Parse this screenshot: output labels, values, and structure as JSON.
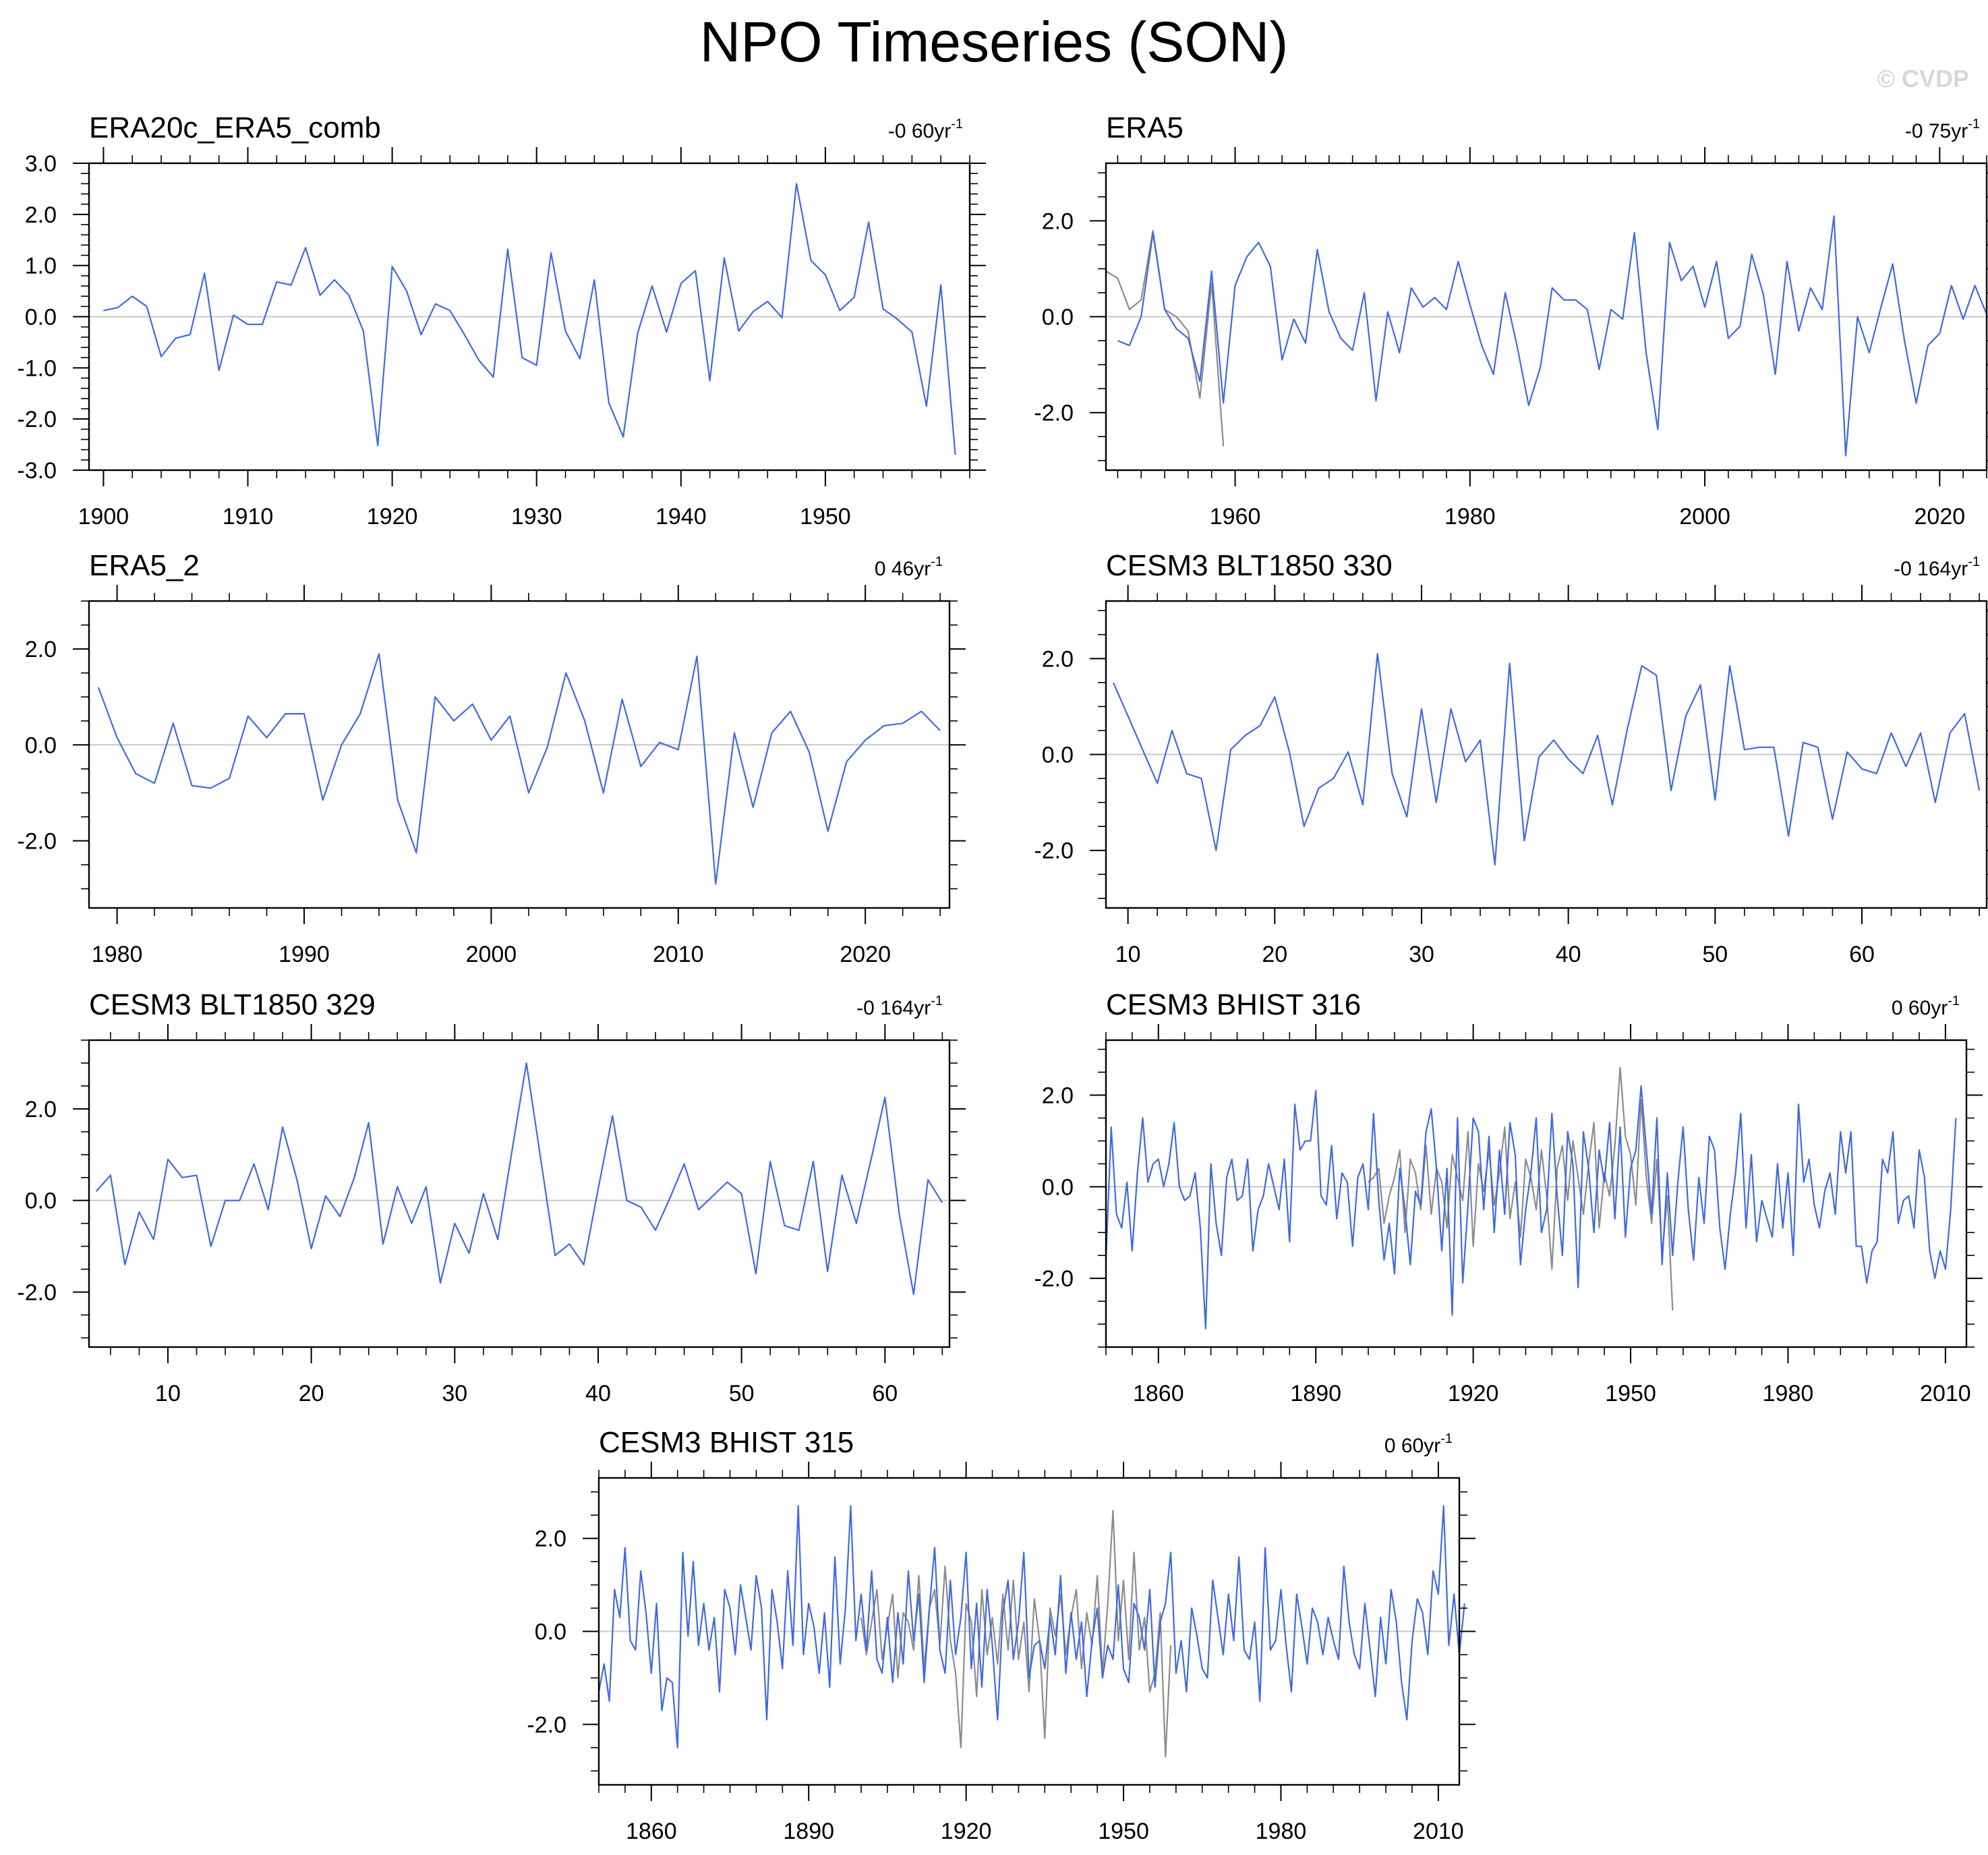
{
  "title": "NPO Timeseries (SON)",
  "watermark": "© CVDP",
  "colors": {
    "main_series": "#4169e1",
    "overlay_series": "#8c8c8c",
    "zero_line": "#c8c8c8"
  },
  "chart_data": [
    {
      "type": "line",
      "title": "ERA20c_ERA5_comb",
      "trend": "-0 60yr",
      "trend_exp": "-1",
      "xlim": [
        1899,
        1960
      ],
      "ylim": [
        -3.0,
        3.0
      ],
      "xticks": [
        1900,
        1910,
        1920,
        1930,
        1940,
        1950
      ],
      "yticks": [
        3.0,
        2.0,
        1.0,
        0.0,
        -1.0,
        -2.0,
        -3.0
      ],
      "ytick_labels": [
        "3.0",
        "2.0",
        "1.0",
        "0.0",
        "-1.0",
        "-2.0",
        "-3.0"
      ],
      "series": [
        {
          "name": "main",
          "x_start": 1900,
          "x_step": 1,
          "values": [
            0.12,
            0.18,
            0.4,
            0.2,
            -0.78,
            -0.42,
            -0.35,
            0.85,
            -1.05,
            0.03,
            -0.15,
            -0.15,
            0.68,
            0.62,
            1.35,
            0.42,
            0.72,
            0.42,
            -0.28,
            -2.52,
            0.98,
            0.5,
            -0.35,
            0.25,
            0.12,
            -0.35,
            -0.85,
            -1.18,
            1.32,
            -0.8,
            -0.95,
            1.25,
            -0.28,
            -0.82,
            0.72,
            -1.68,
            -2.35,
            -0.32,
            0.6,
            -0.3,
            0.65,
            0.9,
            -1.25,
            1.15,
            -0.28,
            0.1,
            0.3,
            -0.02,
            2.6,
            1.1,
            0.82,
            0.12,
            0.38,
            1.85,
            0.15,
            -0.05,
            -0.3,
            -1.75,
            0.62,
            -2.7
          ]
        }
      ]
    },
    {
      "type": "line",
      "title": "ERA5",
      "trend": "-0 75yr",
      "trend_exp": "-1",
      "xlim": [
        1949,
        2024
      ],
      "ylim": [
        -3.2,
        3.2
      ],
      "xticks": [
        1960,
        1980,
        2000,
        2020
      ],
      "yticks": [
        2.0,
        0.0,
        -2.0
      ],
      "ytick_labels": [
        "2.0",
        "0.0",
        "-2.0"
      ],
      "series": [
        {
          "name": "overlay",
          "x_start": 1949,
          "x_step": 1,
          "values": [
            0.95,
            0.8,
            0.15,
            0.35,
            1.8,
            0.15,
            0.0,
            -0.3,
            -1.7,
            0.7,
            -2.7
          ]
        },
        {
          "name": "main",
          "x_start": 1950,
          "x_step": 1,
          "values": [
            -0.5,
            -0.6,
            0.0,
            1.75,
            0.15,
            -0.25,
            -0.45,
            -1.35,
            0.95,
            -1.8,
            0.65,
            1.25,
            1.55,
            1.05,
            -0.9,
            -0.05,
            -0.55,
            1.4,
            0.1,
            -0.45,
            -0.7,
            0.5,
            -1.75,
            0.1,
            -0.75,
            0.6,
            0.2,
            0.4,
            0.15,
            1.15,
            0.25,
            -0.6,
            -1.2,
            0.5,
            -0.6,
            -1.85,
            -1.05,
            0.6,
            0.35,
            0.35,
            0.15,
            -1.1,
            0.15,
            -0.05,
            1.75,
            -0.75,
            -2.35,
            1.55,
            0.75,
            1.05,
            0.2,
            1.15,
            -0.45,
            -0.2,
            1.3,
            0.45,
            -1.2,
            1.15,
            -0.3,
            0.6,
            0.15,
            2.1,
            -2.9,
            0.0,
            -0.75,
            0.2,
            1.1,
            -0.5,
            -1.8,
            -0.6,
            -0.35,
            0.65,
            -0.05,
            0.65,
            0.05
          ]
        }
      ]
    },
    {
      "type": "line",
      "title": "ERA5_2",
      "trend": "0 46yr",
      "trend_exp": "-1",
      "xlim": [
        1978.5,
        2024.5
      ],
      "ylim": [
        -3.4,
        3.0
      ],
      "xticks": [
        1980,
        1990,
        2000,
        2010,
        2020
      ],
      "yticks": [
        2.0,
        0.0,
        -2.0
      ],
      "ytick_labels": [
        "2.0",
        "0.0",
        "-2.0"
      ],
      "series": [
        {
          "name": "main",
          "x_start": 1979,
          "x_step": 1,
          "values": [
            1.2,
            0.15,
            -0.6,
            -0.8,
            0.45,
            -0.85,
            -0.9,
            -0.7,
            0.6,
            0.15,
            0.65,
            0.65,
            -1.15,
            0.0,
            0.65,
            1.9,
            -1.15,
            -2.25,
            1.0,
            0.5,
            0.85,
            0.1,
            0.6,
            -1.0,
            -0.05,
            1.5,
            0.5,
            -1.0,
            0.95,
            -0.45,
            0.05,
            -0.1,
            1.85,
            -2.9,
            0.25,
            -1.3,
            0.25,
            0.7,
            -0.15,
            -1.8,
            -0.35,
            0.1,
            0.4,
            0.45,
            0.7,
            0.3
          ]
        }
      ]
    },
    {
      "type": "line",
      "title": "CESM3 BLT1850 330",
      "trend": "-0 164yr",
      "trend_exp": "-1",
      "xlim": [
        8.5,
        68.5
      ],
      "ylim": [
        -3.2,
        3.2
      ],
      "xticks": [
        10,
        20,
        30,
        40,
        50,
        60
      ],
      "yticks": [
        2.0,
        0.0,
        -2.0
      ],
      "ytick_labels": [
        "2.0",
        "0.0",
        "-2.0"
      ],
      "series": [
        {
          "name": "main",
          "x_start": 9,
          "x_step": 1,
          "values": [
            1.5,
            0.8,
            0.1,
            -0.6,
            0.5,
            -0.4,
            -0.5,
            -2.0,
            0.1,
            0.4,
            0.6,
            1.2,
            0.05,
            -1.5,
            -0.7,
            -0.5,
            0.05,
            -1.05,
            2.1,
            -0.4,
            -1.3,
            0.95,
            -1.0,
            0.95,
            -0.15,
            0.3,
            -2.3,
            1.9,
            -1.8,
            -0.05,
            0.3,
            -0.1,
            -0.4,
            0.4,
            -1.05,
            0.5,
            1.85,
            1.65,
            -0.75,
            0.8,
            1.45,
            -0.95,
            1.85,
            0.1,
            0.15,
            0.15,
            -1.7,
            0.25,
            0.15,
            -1.35,
            0.05,
            -0.3,
            -0.4,
            0.45,
            -0.25,
            0.45,
            -1.0,
            0.45,
            0.85,
            -0.75
          ]
        }
      ]
    },
    {
      "type": "line",
      "title": "CESM3 BLT1850 329",
      "trend": "-0 164yr",
      "trend_exp": "-1",
      "xlim": [
        4.5,
        64.5
      ],
      "ylim": [
        -3.2,
        3.5
      ],
      "xticks": [
        10,
        20,
        30,
        40,
        50,
        60
      ],
      "yticks": [
        2.0,
        0.0,
        -2.0
      ],
      "ytick_labels": [
        "2.0",
        "0.0",
        "-2.0"
      ],
      "series": [
        {
          "name": "main",
          "x_start": 5,
          "x_step": 1,
          "values": [
            0.2,
            0.55,
            -1.4,
            -0.25,
            -0.85,
            0.9,
            0.5,
            0.55,
            -1.0,
            0.0,
            0.0,
            0.8,
            -0.2,
            1.6,
            0.45,
            -1.05,
            0.1,
            -0.35,
            0.5,
            1.7,
            -0.95,
            0.3,
            -0.5,
            0.3,
            -1.8,
            -0.5,
            -1.15,
            0.15,
            -0.85,
            1.1,
            3.0,
            0.9,
            -1.2,
            -0.95,
            -1.4,
            0.25,
            1.85,
            0.0,
            -0.15,
            -0.65,
            0.05,
            0.8,
            -0.2,
            0.1,
            0.4,
            0.15,
            -1.6,
            0.85,
            -0.55,
            -0.65,
            0.85,
            -1.55,
            0.55,
            -0.5,
            0.85,
            2.25,
            -0.3,
            -2.05,
            0.45,
            -0.05
          ]
        }
      ]
    },
    {
      "type": "line",
      "title": "CESM3 BHIST 316",
      "trend": "0 60yr",
      "trend_exp": "-1",
      "xlim": [
        1850,
        2014
      ],
      "ylim": [
        -3.5,
        3.2
      ],
      "xticks": [
        1860,
        1890,
        1920,
        1950,
        1980,
        2010
      ],
      "yticks": [
        2.0,
        0.0,
        -2.0
      ],
      "ytick_labels": [
        "2.0",
        "0.0",
        "-2.0"
      ],
      "series": [
        {
          "name": "overlay",
          "x_start": 1900,
          "x_step": 1,
          "values": [
            0.1,
            0.2,
            0.4,
            -0.8,
            -0.2,
            0.2,
            0.8,
            -1.0,
            0.6,
            0.3,
            -0.5,
            0.9,
            -0.6,
            0.4,
            0.1,
            -0.9,
            0.7,
            0.2,
            -0.3,
            1.2,
            -1.3,
            0.5,
            -0.1,
            0.8,
            -0.4,
            0.3,
            1.3,
            -0.7,
            0.1,
            -1.1,
            0.6,
            0.2,
            -0.5,
            0.8,
            -0.2,
            -1.8,
            0.4,
            0.9,
            -0.3,
            1.0,
            0.2,
            -0.6,
            0.5,
            1.4,
            -0.9,
            0.3,
            -0.2,
            0.9,
            2.6,
            1.1,
            0.7,
            -0.4,
            1.9,
            0.2,
            -0.8,
            0.6,
            -1.5,
            -0.2,
            -2.7
          ]
        },
        {
          "name": "main",
          "x_start": 1850,
          "x_step": 1,
          "values": [
            -1.6,
            1.3,
            -0.6,
            -0.9,
            0.1,
            -1.4,
            0.3,
            1.5,
            0.1,
            0.5,
            0.6,
            0.0,
            0.5,
            1.4,
            0.0,
            -0.3,
            -0.2,
            0.3,
            -0.9,
            -3.1,
            0.5,
            -0.8,
            -1.5,
            0.2,
            0.6,
            -0.3,
            -0.2,
            0.6,
            -1.4,
            -0.5,
            -0.2,
            0.5,
            0.0,
            -0.5,
            0.6,
            -1.2,
            1.8,
            0.8,
            1.0,
            1.0,
            2.1,
            -0.2,
            -0.4,
            0.9,
            -0.7,
            0.3,
            0.1,
            -1.3,
            0.2,
            0.5,
            -0.5,
            1.6,
            -0.3,
            -1.6,
            -0.8,
            -1.9,
            0.4,
            -0.5,
            -1.7,
            -0.1,
            -0.4,
            1.2,
            1.7,
            0.4,
            -1.4,
            0.4,
            -2.8,
            1.5,
            -2.1,
            -0.4,
            1.5,
            1.2,
            -0.5,
            1.1,
            -1.0,
            0.8,
            -0.6,
            1.4,
            0.7,
            -1.7,
            -0.5,
            0.3,
            1.5,
            -1.0,
            -0.5,
            1.6,
            -0.2,
            -1.5,
            1.2,
            0.5,
            -2.2,
            1.2,
            0.4,
            -1.0,
            0.8,
            0.1,
            1.4,
            -0.7,
            1.3,
            -1.1,
            0.4,
            0.8,
            2.2,
            0.8,
            -0.6,
            1.5,
            -1.7,
            0.3,
            -1.5,
            0.1,
            1.3,
            -0.5,
            -1.6,
            0.2,
            -0.8,
            1.1,
            0.8,
            -0.9,
            -1.8,
            -0.6,
            0.3,
            1.6,
            -0.9,
            0.7,
            -1.2,
            -0.3,
            -0.7,
            -1.1,
            0.5,
            -0.9,
            0.3,
            -1.5,
            1.8,
            0.1,
            0.6,
            -0.4,
            -0.9,
            -0.1,
            0.3,
            -0.6,
            1.2,
            0.3,
            1.2,
            -1.3,
            -1.3,
            -2.1,
            -1.4,
            -1.2,
            0.6,
            0.3,
            1.2,
            -0.8,
            -0.3,
            -0.2,
            -0.9,
            0.8,
            0.2,
            -1.4,
            -2.0,
            -1.4,
            -1.8,
            -0.5,
            1.5
          ]
        }
      ]
    },
    {
      "type": "line",
      "title": "CESM3 BHIST 315",
      "trend": "0 60yr",
      "trend_exp": "-1",
      "xlim": [
        1850,
        2014
      ],
      "ylim": [
        -3.3,
        3.3
      ],
      "xticks": [
        1860,
        1890,
        1920,
        1950,
        1980,
        2010
      ],
      "yticks": [
        2.0,
        0.0,
        -2.0
      ],
      "ytick_labels": [
        "2.0",
        "0.0",
        "-2.0"
      ],
      "series": [
        {
          "name": "overlay",
          "x_start": 1900,
          "x_step": 1,
          "values": [
            0.3,
            -0.5,
            0.2,
            0.9,
            -0.6,
            0.1,
            0.8,
            -1.0,
            0.4,
            0.2,
            -0.4,
            1.2,
            -0.8,
            0.5,
            0.9,
            -0.3,
            1.4,
            -0.2,
            -0.9,
            -2.5,
            0.6,
            0.2,
            -1.4,
            0.9,
            -0.5,
            0.3,
            -0.7,
            0.8,
            -0.4,
            1.1,
            -0.6,
            0.2,
            -1.3,
            0.7,
            -0.2,
            -2.3,
            0.5,
            -0.1,
            0.8,
            -0.5,
            0.3,
            0.9,
            -0.8,
            0.4,
            -0.3,
            1.2,
            -0.9,
            0.6,
            2.6,
            -0.2,
            1.1,
            -0.6,
            1.7,
            -0.4,
            0.3,
            -1.3,
            -0.9,
            0.4,
            -2.7,
            -0.3
          ]
        },
        {
          "name": "main",
          "x_start": 1850,
          "x_step": 1,
          "values": [
            -1.3,
            -0.7,
            -1.5,
            0.9,
            0.3,
            1.8,
            -0.2,
            -0.4,
            1.3,
            0.4,
            -0.9,
            0.6,
            -1.7,
            -1.0,
            -1.1,
            -2.5,
            1.7,
            -0.1,
            1.5,
            -0.3,
            0.6,
            -0.4,
            0.3,
            -1.3,
            0.9,
            0.5,
            -0.5,
            1.0,
            0.3,
            -0.4,
            1.2,
            0.5,
            -1.9,
            0.9,
            0.2,
            -0.8,
            1.3,
            -0.3,
            2.7,
            -0.5,
            0.6,
            0.1,
            -0.9,
            0.4,
            -1.2,
            1.6,
            -0.7,
            0.5,
            2.7,
            -0.2,
            0.8,
            -0.4,
            1.3,
            -0.6,
            -0.9,
            0.3,
            -1.1,
            0.4,
            -0.7,
            1.3,
            -0.2,
            0.8,
            -1.1,
            0.5,
            1.8,
            -0.4,
            -0.9,
            1.1,
            -0.5,
            0.3,
            1.7,
            -0.8,
            0.6,
            -1.2,
            0.9,
            -0.3,
            -1.9,
            0.4,
            1.1,
            -0.6,
            0.2,
            1.7,
            -1.0,
            -0.3,
            -0.2,
            -0.8,
            0.3,
            -0.5,
            1.2,
            -0.9,
            0.4,
            -0.6,
            0.2,
            -1.4,
            -0.2,
            0.5,
            -1.0,
            -0.3,
            -0.6,
            1.0,
            -0.8,
            -1.1,
            0.6,
            0.3,
            -0.4,
            0.9,
            -1.2,
            0.2,
            0.6,
            1.7,
            -0.9,
            -0.2,
            -1.3,
            0.5,
            -0.1,
            -0.8,
            -1.0,
            1.1,
            0.3,
            -0.5,
            0.8,
            -0.2,
            1.6,
            -0.4,
            -0.6,
            0.2,
            -1.5,
            1.8,
            -0.4,
            -0.2,
            0.9,
            -0.3,
            -1.3,
            0.8,
            0.1,
            -0.7,
            0.5,
            0.2,
            -0.5,
            0.3,
            -0.2,
            -0.6,
            1.4,
            0.2,
            -0.5,
            -0.8,
            0.6,
            -0.4,
            -1.4,
            0.3,
            -0.7,
            0.9,
            0.2,
            -1.1,
            -1.9,
            -0.2,
            0.7,
            0.4,
            -0.5,
            1.3,
            0.8,
            2.7,
            -0.3,
            0.8,
            -0.5,
            0.6
          ]
        }
      ]
    }
  ]
}
